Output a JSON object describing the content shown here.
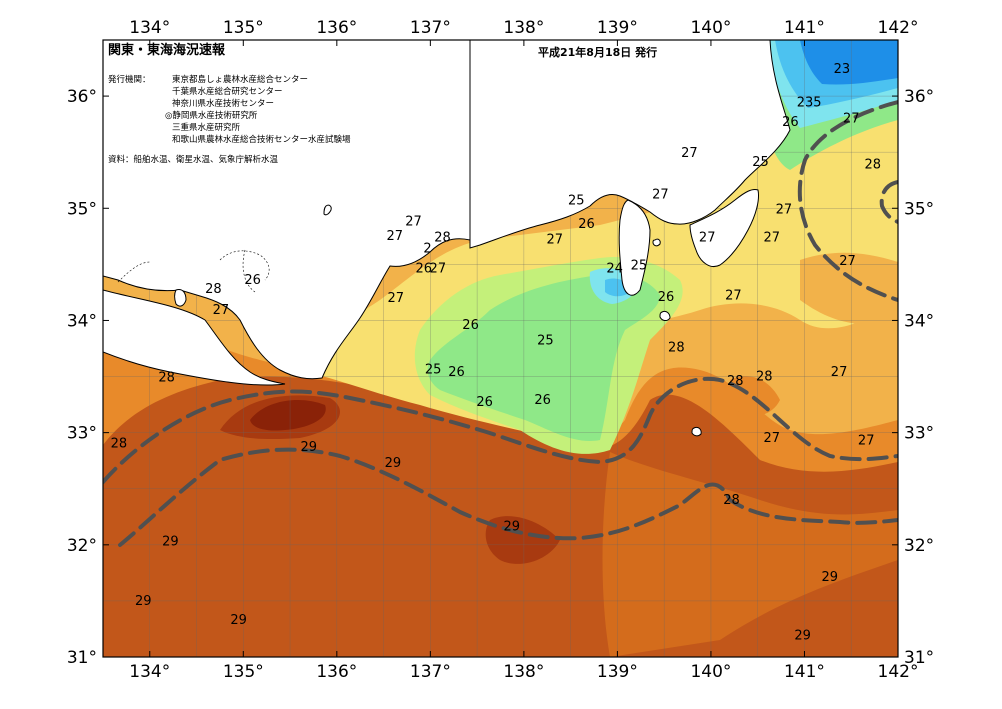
{
  "title": "関東・東海海況速報",
  "issue_date": "平成21年8月18日 発行",
  "issuer_label": "発行機関：",
  "issuers": [
    "東京都島しょ農林水産総合センター",
    "千葉県水産総合研究センター",
    "神奈川県水産技術センター",
    "◎静岡県水産技術研究所",
    "三重県水産研究所",
    "和歌山県農林水産総合技術センター水産試験場"
  ],
  "sources": "資料：船舶水温、衛星水温、気象庁解析水温",
  "map": {
    "lon_range": [
      133.5,
      142.0
    ],
    "lat_range": [
      31.0,
      36.5
    ],
    "lon_ticks": [
      {
        "value": 134,
        "label": "134°"
      },
      {
        "value": 135,
        "label": "135°"
      },
      {
        "value": 136,
        "label": "136°"
      },
      {
        "value": 137,
        "label": "137°"
      },
      {
        "value": 138,
        "label": "138°"
      },
      {
        "value": 139,
        "label": "139°"
      },
      {
        "value": 140,
        "label": "140°"
      },
      {
        "value": 141,
        "label": "141°"
      },
      {
        "value": 142,
        "label": "142°"
      }
    ],
    "lat_ticks": [
      {
        "value": 31,
        "label": "31°"
      },
      {
        "value": 32,
        "label": "32°"
      },
      {
        "value": 33,
        "label": "33°"
      },
      {
        "value": 34,
        "label": "34°"
      },
      {
        "value": 35,
        "label": "35°"
      },
      {
        "value": 36,
        "label": "36°"
      }
    ],
    "colors": {
      "t22": "#1e8fe8",
      "t23": "#4cc2f0",
      "t24": "#7fe4ee",
      "t25": "#8fe888",
      "t26": "#c4f07a",
      "t27": "#f8e070",
      "t27_5": "#f2b24a",
      "t28": "#e88a2a",
      "t28_5": "#d46c1c",
      "t29": "#c2571a",
      "t29_5": "#a83a10",
      "t30": "#8a2208",
      "land": "#ffffff",
      "kuroshio_axis": "#505050"
    },
    "contour_labels": [
      {
        "text": "23",
        "lon": 141.4,
        "lat": 36.25
      },
      {
        "text": "235",
        "lon": 141.05,
        "lat": 35.95
      },
      {
        "text": "26",
        "lon": 140.85,
        "lat": 35.78
      },
      {
        "text": "27",
        "lon": 141.5,
        "lat": 35.81
      },
      {
        "text": "28",
        "lon": 141.73,
        "lat": 35.4
      },
      {
        "text": "25",
        "lon": 140.53,
        "lat": 35.42
      },
      {
        "text": "27",
        "lon": 139.77,
        "lat": 35.5
      },
      {
        "text": "27",
        "lon": 139.46,
        "lat": 35.13
      },
      {
        "text": "27",
        "lon": 140.78,
        "lat": 35.0
      },
      {
        "text": "27",
        "lon": 139.96,
        "lat": 34.75
      },
      {
        "text": "27",
        "lon": 140.65,
        "lat": 34.75
      },
      {
        "text": "27",
        "lon": 141.46,
        "lat": 34.54
      },
      {
        "text": "25",
        "lon": 138.56,
        "lat": 35.08
      },
      {
        "text": "26",
        "lon": 138.67,
        "lat": 34.87
      },
      {
        "text": "27",
        "lon": 138.33,
        "lat": 34.73
      },
      {
        "text": "27",
        "lon": 136.82,
        "lat": 34.89
      },
      {
        "text": "28",
        "lon": 137.13,
        "lat": 34.75
      },
      {
        "text": "27",
        "lon": 136.62,
        "lat": 34.76
      },
      {
        "text": "2",
        "lon": 136.97,
        "lat": 34.65
      },
      {
        "text": "26",
        "lon": 136.93,
        "lat": 34.47
      },
      {
        "text": "27",
        "lon": 137.08,
        "lat": 34.47
      },
      {
        "text": "24",
        "lon": 138.97,
        "lat": 34.47
      },
      {
        "text": "25",
        "lon": 139.23,
        "lat": 34.5
      },
      {
        "text": "26",
        "lon": 139.52,
        "lat": 34.22
      },
      {
        "text": "27",
        "lon": 140.24,
        "lat": 34.23
      },
      {
        "text": "26",
        "lon": 135.1,
        "lat": 34.37
      },
      {
        "text": "28",
        "lon": 134.68,
        "lat": 34.29
      },
      {
        "text": "27",
        "lon": 134.76,
        "lat": 34.1
      },
      {
        "text": "27",
        "lon": 136.63,
        "lat": 34.21
      },
      {
        "text": "26",
        "lon": 137.43,
        "lat": 33.97
      },
      {
        "text": "25",
        "lon": 138.23,
        "lat": 33.83
      },
      {
        "text": "28",
        "lon": 139.63,
        "lat": 33.77
      },
      {
        "text": "25",
        "lon": 137.03,
        "lat": 33.57
      },
      {
        "text": "26",
        "lon": 137.28,
        "lat": 33.55
      },
      {
        "text": "28",
        "lon": 140.26,
        "lat": 33.47
      },
      {
        "text": "28",
        "lon": 140.57,
        "lat": 33.51
      },
      {
        "text": "27",
        "lon": 141.37,
        "lat": 33.55
      },
      {
        "text": "28",
        "lon": 134.18,
        "lat": 33.5
      },
      {
        "text": "26",
        "lon": 137.58,
        "lat": 33.28
      },
      {
        "text": "26",
        "lon": 138.2,
        "lat": 33.3
      },
      {
        "text": "27",
        "lon": 140.65,
        "lat": 32.96
      },
      {
        "text": "27",
        "lon": 141.66,
        "lat": 32.94
      },
      {
        "text": "28",
        "lon": 133.67,
        "lat": 32.91
      },
      {
        "text": "29",
        "lon": 135.7,
        "lat": 32.88
      },
      {
        "text": "29",
        "lon": 136.6,
        "lat": 32.74
      },
      {
        "text": "28",
        "lon": 140.22,
        "lat": 32.41
      },
      {
        "text": "29",
        "lon": 137.87,
        "lat": 32.17
      },
      {
        "text": "29",
        "lon": 134.22,
        "lat": 32.04
      },
      {
        "text": "29",
        "lon": 141.27,
        "lat": 31.72
      },
      {
        "text": "29",
        "lon": 133.93,
        "lat": 31.51
      },
      {
        "text": "29",
        "lon": 134.95,
        "lat": 31.34
      },
      {
        "text": "29",
        "lon": 140.98,
        "lat": 31.2
      }
    ]
  }
}
